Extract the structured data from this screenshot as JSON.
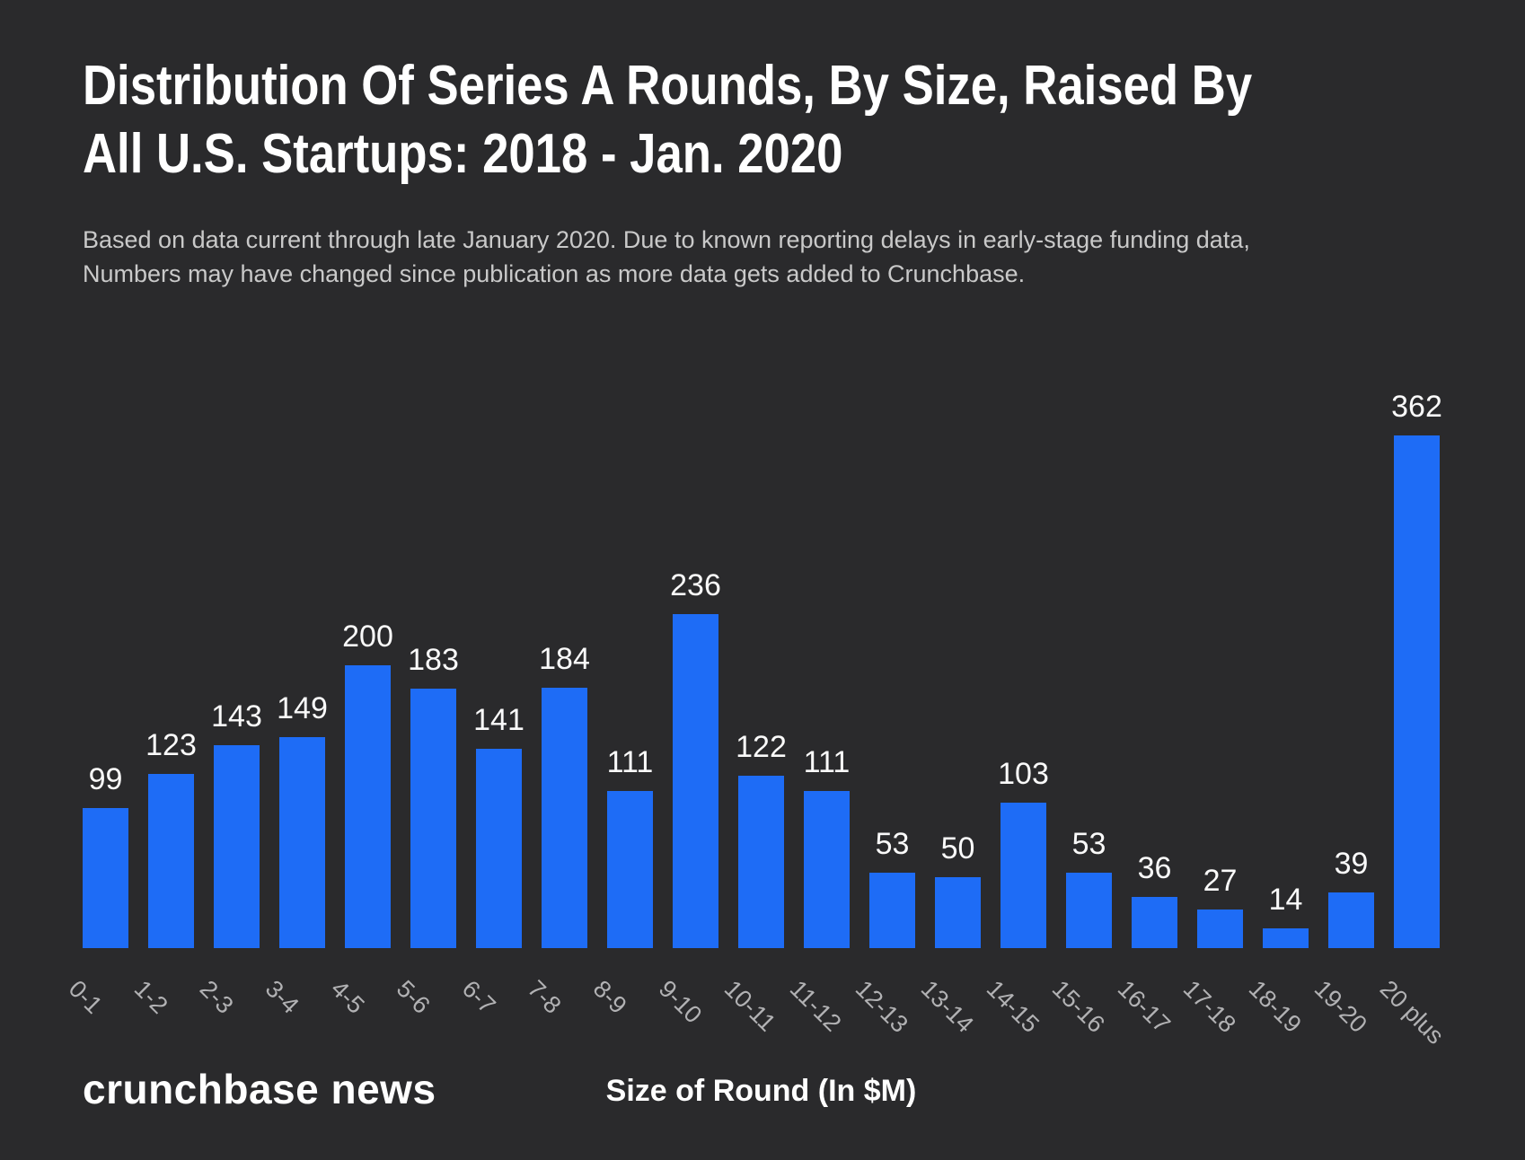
{
  "header": {
    "title_lines": [
      "Distribution Of Series A Rounds, By Size, Raised By",
      "All U.S. Startups: 2018 - Jan. 2020"
    ],
    "subtitle_lines": [
      "Based on data current through late January 2020. Due to known reporting delays in early-stage funding data,",
      "Numbers may have changed since publication as more data gets added to Crunchbase."
    ]
  },
  "footer": {
    "brand": "crunchbase news",
    "xlabel": "Size of Round (In $M)"
  },
  "colors": {
    "background": "#2a2a2c",
    "bar": "#1e6cf6",
    "title": "#ffffff",
    "subtitle": "#c9c9c9",
    "value_label": "#fafafa",
    "tick_label": "#b2b2b4"
  },
  "chart_data": {
    "type": "bar",
    "title": "Distribution Of Series A Rounds, By Size, Raised By All U.S. Startups: 2018 - Jan. 2020",
    "subtitle": "Based on data current through late January 2020. Due to known reporting delays in early-stage funding data, Numbers may have changed since publication as more data gets added to Crunchbase.",
    "categories": [
      "0-1",
      "1-2",
      "2-3",
      "3-4",
      "4-5",
      "5-6",
      "6-7",
      "7-8",
      "8-9",
      "9-10",
      "10-11",
      "11-12",
      "12-13",
      "13-14",
      "14-15",
      "15-16",
      "16-17",
      "17-18",
      "18-19",
      "19-20",
      "20 plus"
    ],
    "values": [
      99,
      123,
      143,
      149,
      200,
      183,
      141,
      184,
      111,
      236,
      122,
      111,
      53,
      50,
      103,
      53,
      36,
      27,
      14,
      39,
      362
    ],
    "xlabel": "Size of Round (In $M)",
    "ylabel": "",
    "ylim": [
      0,
      380
    ],
    "grid": false,
    "legend": false,
    "value_labels": true,
    "x_tick_rotation_deg": 45,
    "source": "crunchbase news"
  }
}
